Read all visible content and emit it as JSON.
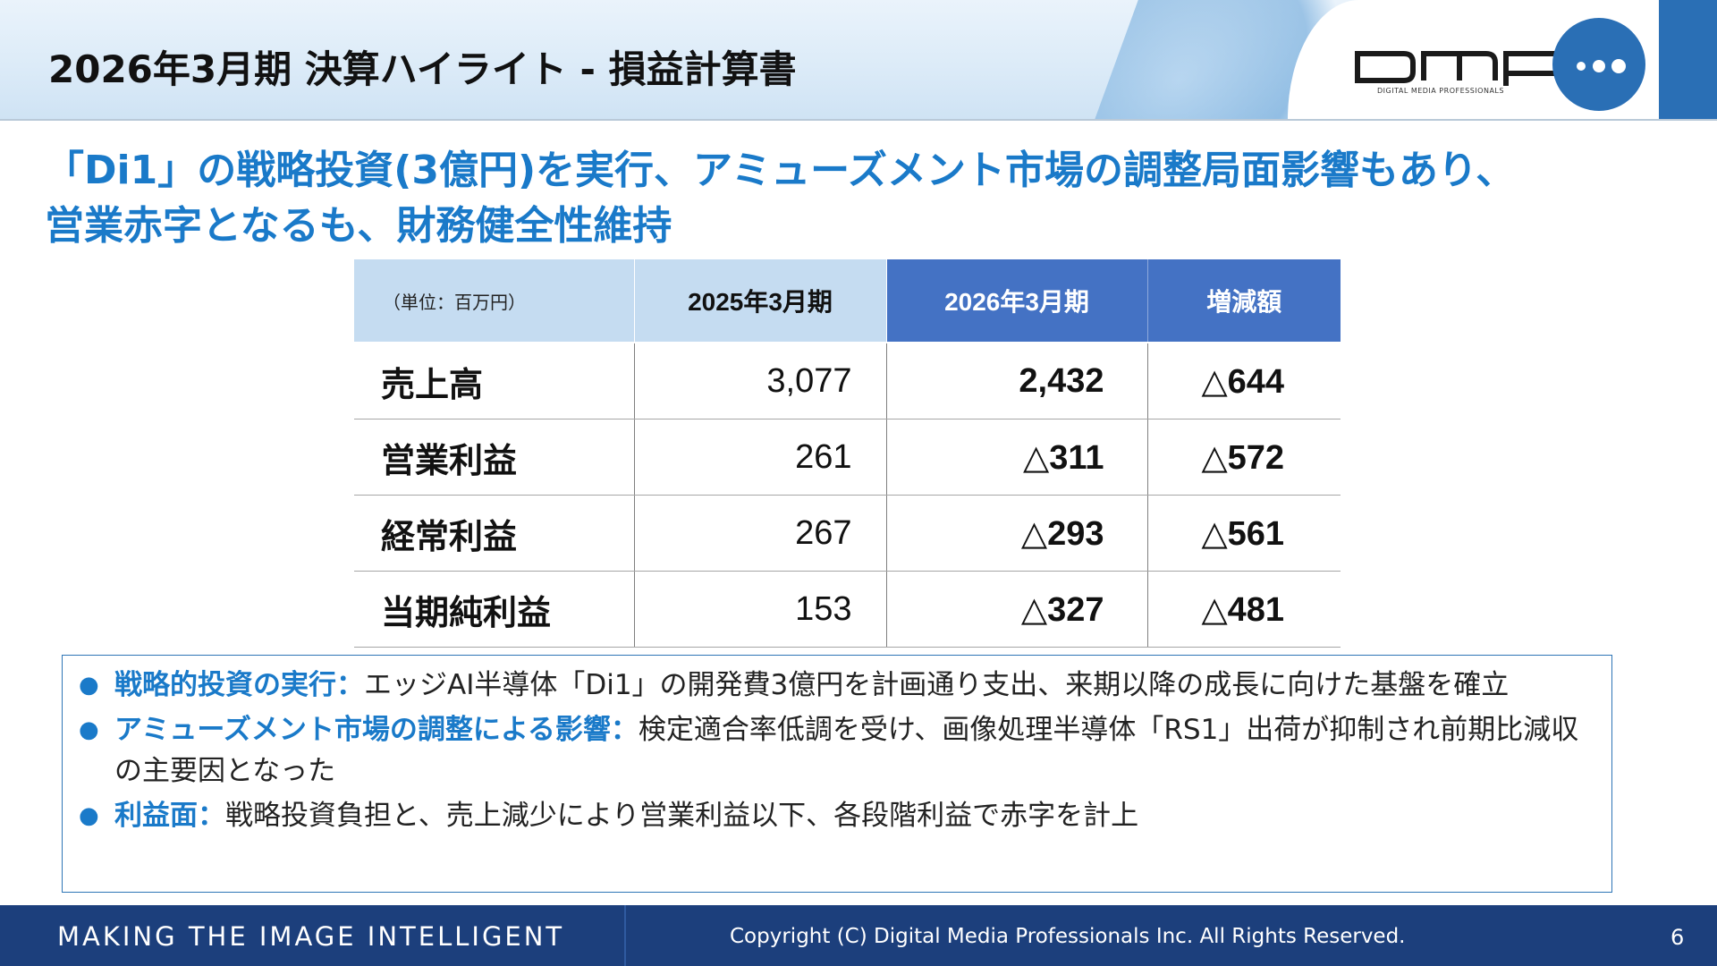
{
  "header": {
    "title": "2026年3月期 決算ハイライト - 損益計算書",
    "logo_text": "DMP",
    "logo_sub": "DIGITAL MEDIA PROFESSIONALS",
    "logo_color": "#2a6fb5"
  },
  "headline": {
    "line1": "「Di1」の戦略投資(3億円)を実行、アミューズメント市場の調整局面影響もあり、",
    "line2": "営業赤字となるも、財務健全性維持"
  },
  "table": {
    "unit_label": "（単位：百万円）",
    "columns": [
      "2025年3月期",
      "2026年3月期",
      "増減額"
    ],
    "rows": [
      {
        "label": "売上高",
        "v2025": "3,077",
        "v2026": "2,432",
        "diff": "△644"
      },
      {
        "label": "営業利益",
        "v2025": "261",
        "v2026": "△311",
        "diff": "△572"
      },
      {
        "label": "経常利益",
        "v2025": "267",
        "v2026": "△293",
        "diff": "△561"
      },
      {
        "label": "当期純利益",
        "v2025": "153",
        "v2026": "△327",
        "diff": "△481"
      }
    ],
    "header_light_color": "#c5dcf1",
    "header_dark_color": "#4472c4"
  },
  "notes": [
    {
      "lead": "戦略的投資の実行：",
      "text": "エッジAI半導体「Di1」の開発費3億円を計画通り支出、来期以降の成長に向けた基盤を確立"
    },
    {
      "lead": "アミューズメント市場の調整による影響：",
      "text": "検定適合率低調を受け、画像処理半導体「RS1」出荷が抑制され前期比減収の主要因となった"
    },
    {
      "lead": "利益面：",
      "text": "戦略投資負担と、売上減少により営業利益以下、各段階利益で赤字を計上"
    }
  ],
  "footer": {
    "tagline": "MAKING THE IMAGE INTELLIGENT",
    "copyright": "Copyright (C) Digital Media Professionals Inc. All Rights Reserved.",
    "page_number": "6",
    "background": "#1c3f7c"
  },
  "accent_color": "#1a7ac9"
}
